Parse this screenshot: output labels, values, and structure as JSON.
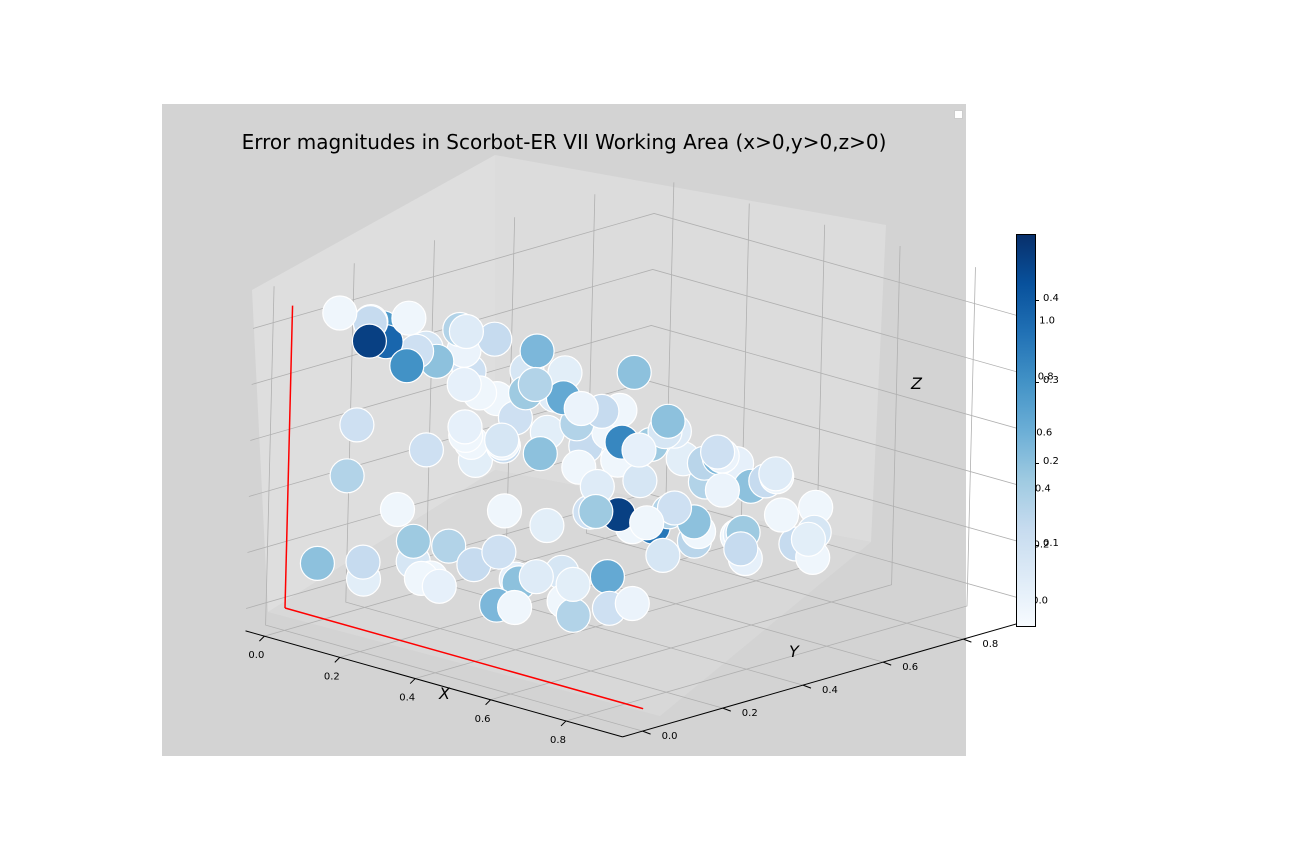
{
  "chart_data": {
    "type": "scatter",
    "title": "Error magnitudes in Scorbot-ER VII Working Area (x>0,y>0,z>0)",
    "xlabel": "X",
    "ylabel": "Y",
    "zlabel": "Z",
    "x_ticks": [
      "0.0",
      "0.2",
      "0.4",
      "0.6",
      "0.8"
    ],
    "y_ticks": [
      "0.0",
      "0.2",
      "0.4",
      "0.6",
      "0.8"
    ],
    "z_ticks": [
      "0.0",
      "0.2",
      "0.4",
      "0.6",
      "0.8",
      "1.0"
    ],
    "xlim": [
      -0.05,
      0.95
    ],
    "ylim": [
      -0.05,
      0.95
    ],
    "zlim": [
      -0.08,
      1.13
    ],
    "grid": true,
    "colormap": "Blues",
    "colorbar": {
      "ticks": [
        "0.1",
        "0.2",
        "0.3",
        "0.4"
      ],
      "range": [
        0.0,
        0.48
      ]
    },
    "reference_lines_color": "#ff0000",
    "points": [
      {
        "x": 0.02,
        "y": 0.1,
        "z": 1.02,
        "c": 0.02
      },
      {
        "x": 0.05,
        "y": 0.15,
        "z": 0.98,
        "c": 0.05
      },
      {
        "x": 0.08,
        "y": 0.12,
        "z": 1.0,
        "c": 0.12
      },
      {
        "x": 0.03,
        "y": 0.2,
        "z": 0.93,
        "c": 0.28
      },
      {
        "x": 0.06,
        "y": 0.18,
        "z": 0.9,
        "c": 0.38
      },
      {
        "x": 0.1,
        "y": 0.1,
        "z": 0.95,
        "c": 0.45
      },
      {
        "x": 0.12,
        "y": 0.2,
        "z": 0.88,
        "c": 0.1
      },
      {
        "x": 0.15,
        "y": 0.15,
        "z": 1.03,
        "c": 0.02
      },
      {
        "x": 0.18,
        "y": 0.25,
        "z": 0.96,
        "c": 0.15
      },
      {
        "x": 0.04,
        "y": 0.3,
        "z": 0.82,
        "c": 0.08
      },
      {
        "x": 0.09,
        "y": 0.28,
        "z": 0.8,
        "c": 0.2
      },
      {
        "x": 0.14,
        "y": 0.3,
        "z": 0.85,
        "c": 0.03
      },
      {
        "x": 0.2,
        "y": 0.1,
        "z": 0.9,
        "c": 0.3
      },
      {
        "x": 0.22,
        "y": 0.3,
        "z": 0.92,
        "c": 0.12
      },
      {
        "x": 0.25,
        "y": 0.2,
        "z": 1.0,
        "c": 0.06
      },
      {
        "x": 0.28,
        "y": 0.35,
        "z": 0.88,
        "c": 0.22
      },
      {
        "x": 0.3,
        "y": 0.15,
        "z": 0.85,
        "c": 0.04
      },
      {
        "x": 0.33,
        "y": 0.3,
        "z": 0.8,
        "c": 0.15
      },
      {
        "x": 0.05,
        "y": 0.4,
        "z": 0.7,
        "c": 0.1
      },
      {
        "x": 0.1,
        "y": 0.38,
        "z": 0.65,
        "c": 0.02
      },
      {
        "x": 0.15,
        "y": 0.45,
        "z": 0.72,
        "c": 0.08
      },
      {
        "x": 0.2,
        "y": 0.4,
        "z": 0.68,
        "c": 0.18
      },
      {
        "x": 0.25,
        "y": 0.45,
        "z": 0.75,
        "c": 0.05
      },
      {
        "x": 0.3,
        "y": 0.4,
        "z": 0.7,
        "c": 0.25
      },
      {
        "x": 0.35,
        "y": 0.45,
        "z": 0.65,
        "c": 0.12
      },
      {
        "x": 0.4,
        "y": 0.35,
        "z": 0.72,
        "c": 0.03
      },
      {
        "x": 0.38,
        "y": 0.5,
        "z": 0.78,
        "c": 0.2
      },
      {
        "x": 0.02,
        "y": 0.5,
        "z": 0.55,
        "c": 0.02
      },
      {
        "x": 0.07,
        "y": 0.5,
        "z": 0.5,
        "c": 0.1
      },
      {
        "x": 0.12,
        "y": 0.55,
        "z": 0.58,
        "c": 0.06
      },
      {
        "x": 0.18,
        "y": 0.55,
        "z": 0.5,
        "c": 0.15
      },
      {
        "x": 0.24,
        "y": 0.6,
        "z": 0.55,
        "c": 0.02
      },
      {
        "x": 0.3,
        "y": 0.55,
        "z": 0.48,
        "c": 0.32
      },
      {
        "x": 0.36,
        "y": 0.6,
        "z": 0.52,
        "c": 0.08
      },
      {
        "x": 0.42,
        "y": 0.55,
        "z": 0.6,
        "c": 0.2
      },
      {
        "x": 0.45,
        "y": 0.45,
        "z": 0.55,
        "c": 0.04
      },
      {
        "x": 0.05,
        "y": 0.6,
        "z": 0.4,
        "c": 0.05
      },
      {
        "x": 0.1,
        "y": 0.65,
        "z": 0.35,
        "c": 0.12
      },
      {
        "x": 0.16,
        "y": 0.65,
        "z": 0.42,
        "c": 0.02
      },
      {
        "x": 0.22,
        "y": 0.7,
        "z": 0.38,
        "c": 0.18
      },
      {
        "x": 0.28,
        "y": 0.7,
        "z": 0.45,
        "c": 0.06
      },
      {
        "x": 0.34,
        "y": 0.72,
        "z": 0.35,
        "c": 0.14
      },
      {
        "x": 0.4,
        "y": 0.7,
        "z": 0.4,
        "c": 0.22
      },
      {
        "x": 0.46,
        "y": 0.65,
        "z": 0.45,
        "c": 0.03
      },
      {
        "x": 0.5,
        "y": 0.6,
        "z": 0.5,
        "c": 0.1
      },
      {
        "x": 0.08,
        "y": 0.75,
        "z": 0.25,
        "c": 0.02
      },
      {
        "x": 0.14,
        "y": 0.75,
        "z": 0.2,
        "c": 0.08
      },
      {
        "x": 0.2,
        "y": 0.8,
        "z": 0.28,
        "c": 0.05
      },
      {
        "x": 0.26,
        "y": 0.8,
        "z": 0.22,
        "c": 0.15
      },
      {
        "x": 0.32,
        "y": 0.82,
        "z": 0.3,
        "c": 0.04
      },
      {
        "x": 0.38,
        "y": 0.8,
        "z": 0.25,
        "c": 0.2
      },
      {
        "x": 0.44,
        "y": 0.78,
        "z": 0.3,
        "c": 0.12
      },
      {
        "x": 0.5,
        "y": 0.75,
        "z": 0.35,
        "c": 0.02
      },
      {
        "x": 0.55,
        "y": 0.7,
        "z": 0.4,
        "c": 0.06
      },
      {
        "x": 0.02,
        "y": 0.15,
        "z": 0.6,
        "c": 0.1
      },
      {
        "x": 0.05,
        "y": 0.1,
        "z": 0.45,
        "c": 0.15
      },
      {
        "x": 0.08,
        "y": 0.2,
        "z": 0.3,
        "c": 0.02
      },
      {
        "x": 0.03,
        "y": 0.05,
        "z": 0.15,
        "c": 0.2
      },
      {
        "x": 0.1,
        "y": 0.1,
        "z": 0.1,
        "c": 0.05
      },
      {
        "x": 0.15,
        "y": 0.05,
        "z": 0.2,
        "c": 0.12
      },
      {
        "x": 0.2,
        "y": 0.15,
        "z": 0.12,
        "c": 0.02
      },
      {
        "x": 0.25,
        "y": 0.08,
        "z": 0.3,
        "c": 0.18
      },
      {
        "x": 0.3,
        "y": 0.1,
        "z": 0.15,
        "c": 0.04
      },
      {
        "x": 0.35,
        "y": 0.2,
        "z": 0.25,
        "c": 0.1
      },
      {
        "x": 0.4,
        "y": 0.15,
        "z": 0.1,
        "c": 0.22
      },
      {
        "x": 0.45,
        "y": 0.2,
        "z": 0.2,
        "c": 0.06
      },
      {
        "x": 0.5,
        "y": 0.1,
        "z": 0.15,
        "c": 0.02
      },
      {
        "x": 0.55,
        "y": 0.2,
        "z": 0.1,
        "c": 0.15
      },
      {
        "x": 0.6,
        "y": 0.15,
        "z": 0.25,
        "c": 0.05
      },
      {
        "x": 0.12,
        "y": 0.25,
        "z": 0.05,
        "c": 0.02
      },
      {
        "x": 0.18,
        "y": 0.3,
        "z": 0.1,
        "c": 0.12
      },
      {
        "x": 0.24,
        "y": 0.35,
        "z": 0.05,
        "c": 0.04
      },
      {
        "x": 0.3,
        "y": 0.3,
        "z": 0.08,
        "c": 0.2
      },
      {
        "x": 0.36,
        "y": 0.35,
        "z": 0.12,
        "c": 0.08
      },
      {
        "x": 0.42,
        "y": 0.3,
        "z": 0.06,
        "c": 0.02
      },
      {
        "x": 0.48,
        "y": 0.35,
        "z": 0.15,
        "c": 0.25
      },
      {
        "x": 0.54,
        "y": 0.3,
        "z": 0.08,
        "c": 0.1
      },
      {
        "x": 0.6,
        "y": 0.3,
        "z": 0.12,
        "c": 0.03
      },
      {
        "x": 0.4,
        "y": 0.45,
        "z": 0.3,
        "c": 0.45
      },
      {
        "x": 0.44,
        "y": 0.5,
        "z": 0.25,
        "c": 0.35
      },
      {
        "x": 0.48,
        "y": 0.5,
        "z": 0.32,
        "c": 0.15
      },
      {
        "x": 0.52,
        "y": 0.45,
        "z": 0.2,
        "c": 0.08
      },
      {
        "x": 0.56,
        "y": 0.5,
        "z": 0.28,
        "c": 0.02
      },
      {
        "x": 0.6,
        "y": 0.45,
        "z": 0.35,
        "c": 0.2
      },
      {
        "x": 0.62,
        "y": 0.55,
        "z": 0.22,
        "c": 0.12
      },
      {
        "x": 0.58,
        "y": 0.6,
        "z": 0.15,
        "c": 0.04
      },
      {
        "x": 0.52,
        "y": 0.65,
        "z": 0.2,
        "c": 0.18
      },
      {
        "x": 0.46,
        "y": 0.7,
        "z": 0.15,
        "c": 0.06
      },
      {
        "x": 0.4,
        "y": 0.75,
        "z": 0.1,
        "c": 0.02
      },
      {
        "x": 0.34,
        "y": 0.7,
        "z": 0.08,
        "c": 0.14
      },
      {
        "x": 0.28,
        "y": 0.6,
        "z": 0.15,
        "c": 0.02
      },
      {
        "x": 0.22,
        "y": 0.55,
        "z": 0.2,
        "c": 0.1
      },
      {
        "x": 0.16,
        "y": 0.5,
        "z": 0.15,
        "c": 0.05
      },
      {
        "x": 0.1,
        "y": 0.45,
        "z": 0.2,
        "c": 0.02
      },
      {
        "x": 0.06,
        "y": 0.35,
        "z": 0.1,
        "c": 0.15
      },
      {
        "x": 0.02,
        "y": 0.3,
        "z": 0.05,
        "c": 0.08
      },
      {
        "x": 0.62,
        "y": 0.65,
        "z": 0.3,
        "c": 0.02
      },
      {
        "x": 0.64,
        "y": 0.7,
        "z": 0.2,
        "c": 0.05
      },
      {
        "x": 0.6,
        "y": 0.75,
        "z": 0.1,
        "c": 0.02
      },
      {
        "x": 0.55,
        "y": 0.8,
        "z": 0.15,
        "c": 0.08
      },
      {
        "x": 0.5,
        "y": 0.85,
        "z": 0.2,
        "c": 0.02
      },
      {
        "x": 0.45,
        "y": 0.85,
        "z": 0.05,
        "c": 0.12
      },
      {
        "x": 0.62,
        "y": 0.5,
        "z": 0.45,
        "c": 0.03
      },
      {
        "x": 0.6,
        "y": 0.4,
        "z": 0.42,
        "c": 0.1
      },
      {
        "x": 0.58,
        "y": 0.35,
        "z": 0.38,
        "c": 0.02
      },
      {
        "x": 0.55,
        "y": 0.25,
        "z": 0.45,
        "c": 0.18
      },
      {
        "x": 0.5,
        "y": 0.3,
        "z": 0.5,
        "c": 0.06
      },
      {
        "x": 0.45,
        "y": 0.3,
        "z": 0.55,
        "c": 0.02
      },
      {
        "x": 0.4,
        "y": 0.25,
        "z": 0.6,
        "c": 0.2
      },
      {
        "x": 0.35,
        "y": 0.2,
        "z": 0.65,
        "c": 0.08
      },
      {
        "x": 0.3,
        "y": 0.25,
        "z": 0.6,
        "c": 0.02
      },
      {
        "x": 0.25,
        "y": 0.3,
        "z": 0.55,
        "c": 0.12
      },
      {
        "x": 0.2,
        "y": 0.25,
        "z": 0.62,
        "c": 0.04
      },
      {
        "x": 0.15,
        "y": 0.3,
        "z": 0.55,
        "c": 0.02
      },
      {
        "x": 0.1,
        "y": 0.25,
        "z": 0.5,
        "c": 0.1
      },
      {
        "x": 0.06,
        "y": 0.4,
        "z": 0.45,
        "c": 0.02
      },
      {
        "x": 0.02,
        "y": 0.45,
        "z": 0.35,
        "c": 0.05
      }
    ]
  }
}
